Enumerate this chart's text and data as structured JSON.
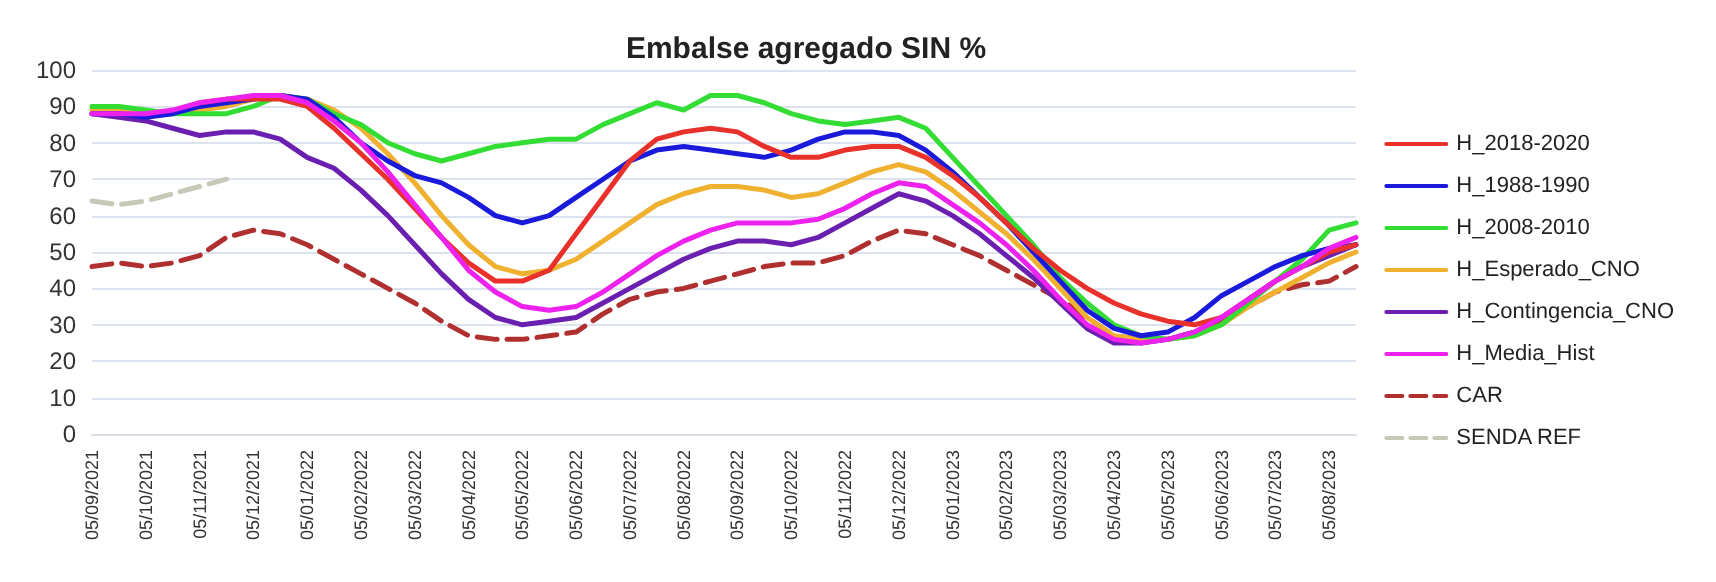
{
  "chart_data": {
    "type": "line",
    "title": "Embalse agregado SIN %",
    "categories": [
      "05/09/2021",
      null,
      "05/10/2021",
      null,
      "05/11/2021",
      null,
      "05/12/2021",
      null,
      "05/01/2022",
      null,
      "05/02/2022",
      null,
      "05/03/2022",
      null,
      "05/04/2022",
      null,
      "05/05/2022",
      null,
      "05/06/2022",
      null,
      "05/07/2022",
      null,
      "05/08/2022",
      null,
      "05/09/2022",
      null,
      "05/10/2022",
      null,
      "05/11/2022",
      null,
      "05/12/2022",
      null,
      "05/01/2023",
      null,
      "05/02/2023",
      null,
      "05/03/2023",
      null,
      "05/04/2023",
      null,
      "05/05/2023",
      null,
      "05/06/2023",
      null,
      "05/07/2023",
      null,
      "05/08/2023",
      null
    ],
    "series": [
      {
        "name": "H_2018-2020",
        "color": "#e8312a",
        "values": [
          null,
          null,
          null,
          null,
          91,
          92,
          92,
          92,
          90,
          84,
          77,
          70,
          62,
          54,
          47,
          42,
          42,
          45,
          55,
          65,
          75,
          81,
          83,
          84,
          83,
          79,
          76,
          76,
          78,
          79,
          79,
          76,
          71,
          65,
          58,
          51,
          45,
          40,
          36,
          33,
          31,
          30,
          32,
          37,
          42,
          46,
          50,
          52
        ]
      },
      {
        "name": "H_1988-1990",
        "color": "#1a1adb",
        "values": [
          88,
          88,
          87,
          88,
          90,
          91,
          92,
          93,
          92,
          87,
          80,
          75,
          71,
          69,
          65,
          60,
          58,
          60,
          65,
          70,
          75,
          78,
          79,
          78,
          77,
          76,
          78,
          81,
          83,
          83,
          82,
          78,
          72,
          65,
          58,
          50,
          42,
          34,
          29,
          27,
          28,
          32,
          38,
          42,
          46,
          49,
          51,
          52
        ]
      },
      {
        "name": "H_2008-2010",
        "color": "#33dd33",
        "values": [
          90,
          90,
          89,
          88,
          88,
          88,
          90,
          93,
          92,
          88,
          85,
          80,
          77,
          75,
          77,
          79,
          80,
          81,
          81,
          85,
          88,
          91,
          89,
          93,
          93,
          91,
          88,
          86,
          85,
          86,
          87,
          84,
          76,
          68,
          60,
          52,
          43,
          36,
          30,
          27,
          26,
          27,
          30,
          36,
          42,
          48,
          56,
          58
        ]
      },
      {
        "name": "H_Esperado_CNO",
        "color": "#f0b030",
        "values": [
          89,
          89,
          88,
          88,
          89,
          90,
          92,
          93,
          92,
          89,
          84,
          77,
          69,
          60,
          52,
          46,
          44,
          45,
          48,
          53,
          58,
          63,
          66,
          68,
          68,
          67,
          65,
          66,
          69,
          72,
          74,
          72,
          67,
          61,
          55,
          48,
          40,
          32,
          27,
          26,
          26,
          27,
          30,
          35,
          39,
          43,
          47,
          50
        ]
      },
      {
        "name": "H_Contingencia_CNO",
        "color": "#6a1fb0",
        "values": [
          88,
          87,
          86,
          84,
          82,
          83,
          83,
          81,
          76,
          73,
          67,
          60,
          52,
          44,
          37,
          32,
          30,
          31,
          32,
          36,
          40,
          44,
          48,
          51,
          53,
          53,
          52,
          54,
          58,
          62,
          66,
          64,
          60,
          55,
          49,
          43,
          36,
          29,
          25,
          25,
          26,
          28,
          32,
          37,
          42,
          46,
          49,
          52
        ]
      },
      {
        "name": "H_Media_Hist",
        "color": "#ee22ee",
        "values": [
          88,
          88,
          88,
          89,
          91,
          92,
          93,
          93,
          91,
          86,
          80,
          72,
          63,
          54,
          45,
          39,
          35,
          34,
          35,
          39,
          44,
          49,
          53,
          56,
          58,
          58,
          58,
          59,
          62,
          66,
          69,
          68,
          63,
          58,
          52,
          45,
          37,
          30,
          26,
          25,
          26,
          28,
          32,
          37,
          42,
          46,
          51,
          54
        ]
      },
      {
        "name": "CAR",
        "color": "#b03030",
        "line_style": "dashed",
        "values": [
          46,
          47,
          46,
          47,
          49,
          54,
          56,
          55,
          52,
          48,
          44,
          40,
          36,
          31,
          27,
          26,
          26,
          27,
          28,
          33,
          37,
          39,
          40,
          42,
          44,
          46,
          47,
          47,
          49,
          53,
          56,
          55,
          52,
          49,
          45,
          41,
          37,
          32,
          27,
          26,
          26,
          28,
          31,
          35,
          39,
          41,
          42,
          46
        ]
      },
      {
        "name": "SENDA REF",
        "color": "#c8c8b8",
        "line_style": "dashed",
        "values": [
          64,
          63,
          64,
          66,
          68,
          70,
          null,
          null,
          null,
          null,
          null,
          null,
          null,
          null,
          null,
          null,
          null,
          null,
          null,
          null,
          null,
          null,
          null,
          null,
          null,
          null,
          null,
          null,
          null,
          null,
          null,
          null,
          null,
          null,
          null,
          null,
          null,
          null,
          null,
          null,
          null,
          null,
          null,
          null,
          null,
          null,
          null,
          null
        ]
      }
    ],
    "ylim": [
      0,
      100
    ],
    "yticks": [
      0,
      10,
      20,
      30,
      40,
      50,
      60,
      70,
      80,
      90,
      100
    ],
    "grid": "y",
    "legend": "right",
    "marker": "none",
    "line_style": "solid"
  }
}
